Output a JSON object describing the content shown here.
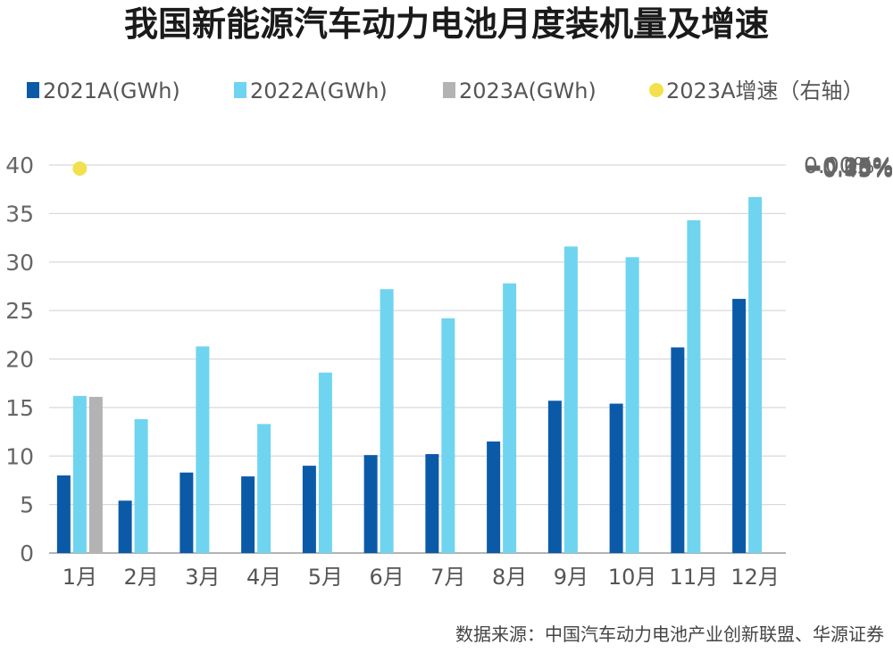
{
  "chart_data": {
    "type": "bar",
    "title": "我国新能源汽车动力电池月度装机量及增速",
    "categories": [
      "1月",
      "2月",
      "3月",
      "4月",
      "5月",
      "6月",
      "7月",
      "8月",
      "9月",
      "10月",
      "11月",
      "12月"
    ],
    "series": [
      {
        "name": "2021A(GWh)",
        "color": "#0b5aa8",
        "values": [
          8.0,
          5.4,
          8.3,
          7.9,
          9.0,
          10.1,
          10.2,
          11.5,
          15.7,
          15.4,
          21.2,
          26.2
        ]
      },
      {
        "name": "2022A(GWh)",
        "color": "#6fd4ef",
        "values": [
          16.2,
          13.8,
          21.3,
          13.3,
          18.6,
          27.2,
          24.2,
          27.8,
          31.6,
          30.5,
          34.3,
          36.7
        ]
      },
      {
        "name": "2023A(GWh)",
        "color": "#b3b3b3",
        "values": [
          16.1,
          null,
          null,
          null,
          null,
          null,
          null,
          null,
          null,
          null,
          null,
          null
        ]
      }
    ],
    "growth_series": {
      "name": "2023A增速（右轴）",
      "color": "#f3e04e",
      "values": [
        -0.414,
        null,
        null,
        null,
        null,
        null,
        null,
        null,
        null,
        null,
        null,
        null
      ]
    },
    "y_left": {
      "ylim": [
        0,
        40
      ],
      "ticks": [
        "0",
        "5",
        "10",
        "15",
        "20",
        "25",
        "30",
        "35",
        "40"
      ]
    },
    "y_right": {
      "ylim": [
        -0.45,
        0.0
      ],
      "ticks": [
        "-0.45%",
        "-0.40%",
        "-0.35%",
        "-0.30%",
        "-0.25%",
        "-0.20%",
        "-0.15%",
        "-0.10%",
        "-0.05%",
        "0.00%"
      ]
    },
    "grid": true,
    "legend_position": "top"
  },
  "source_text": "数据来源：中国汽车动力电池产业创新联盟、华源证券"
}
